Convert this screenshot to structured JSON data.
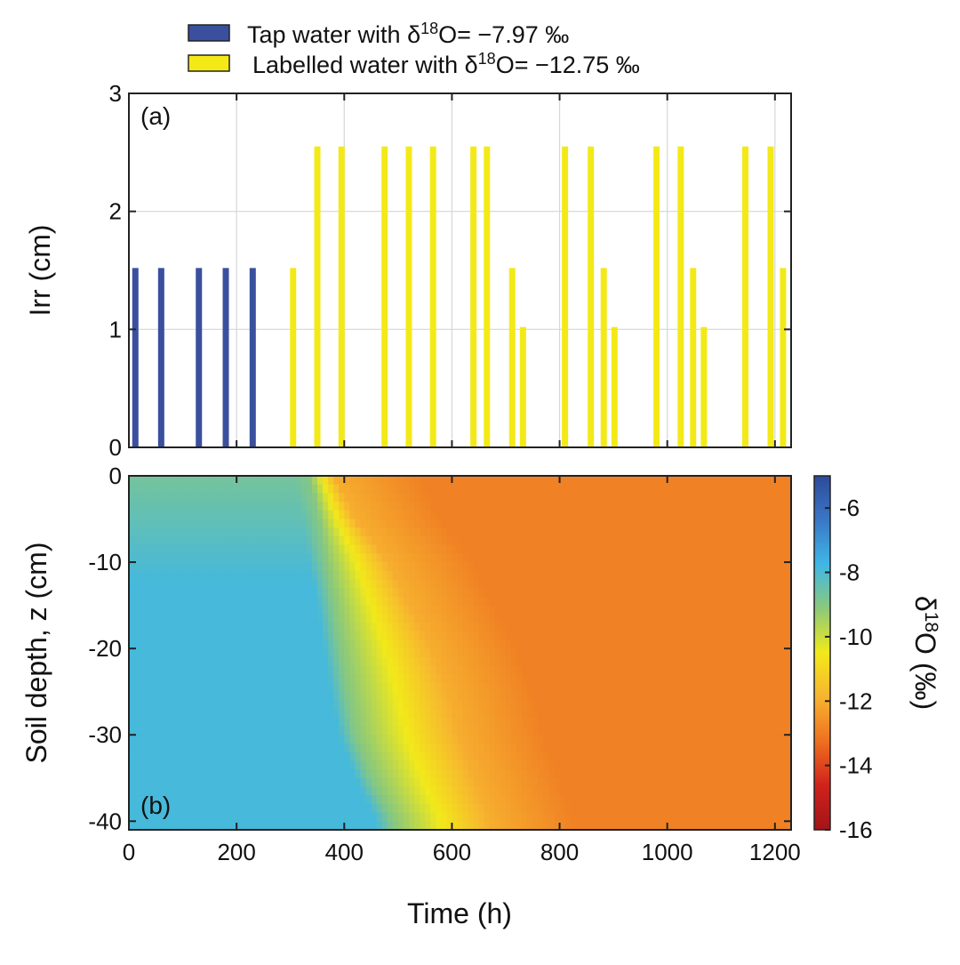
{
  "colors": {
    "tap": "#3a4f9e",
    "labelled": "#f3e917",
    "colormap": [
      "#2d4a9a",
      "#3a77c6",
      "#3fb7e6",
      "#8cc97a",
      "#f2e91a",
      "#f7b430",
      "#ee7020",
      "#d0221b",
      "#a3141a"
    ]
  },
  "chart_data": [
    {
      "type": "bar",
      "panel_label": "(a)",
      "ylabel": "Irr (cm)",
      "xlim": [
        0,
        1230
      ],
      "ylim": [
        0,
        3
      ],
      "yticks": [
        "0",
        "1",
        "2",
        "3"
      ],
      "grid": true,
      "legend": [
        {
          "label": "Tap water with δ18O= −7.97 ‰",
          "text_before": "Tap water with δ",
          "sup": "18",
          "text_after": "O= −7.97 ‰",
          "color_key": "tap"
        },
        {
          "label": "Labelled water with δ18O= −12.75 ‰",
          "text_before": "Labelled water with δ",
          "sup": "18",
          "text_after": "O= −12.75 ‰",
          "color_key": "labelled"
        }
      ],
      "series": [
        {
          "name": "Tap water with δ18O= −7.97 ‰",
          "color_key": "tap",
          "x": [
            12,
            60,
            130,
            180,
            230
          ],
          "values": [
            1.52,
            1.52,
            1.52,
            1.52,
            1.52
          ]
        },
        {
          "name": "Labelled water with δ18O= −12.75 ‰",
          "color_key": "labelled",
          "x": [
            305,
            350,
            395,
            475,
            520,
            565,
            640,
            665,
            712,
            732,
            810,
            858,
            882,
            902,
            980,
            1025,
            1048,
            1068,
            1145,
            1192,
            1215
          ],
          "values": [
            1.52,
            2.55,
            2.55,
            2.55,
            2.55,
            2.55,
            2.55,
            2.55,
            1.52,
            1.02,
            2.55,
            2.55,
            1.52,
            1.02,
            2.55,
            2.55,
            1.52,
            1.02,
            2.55,
            2.55,
            1.52
          ]
        }
      ]
    },
    {
      "type": "heatmap",
      "panel_label": "(b)",
      "xlabel": "Time (h)",
      "ylabel": "Soil depth, z (cm)",
      "xlim": [
        0,
        1230
      ],
      "ylim": [
        -41,
        0
      ],
      "xticks": [
        "0",
        "200",
        "400",
        "600",
        "800",
        "1000",
        "1200"
      ],
      "yticks": [
        "0",
        "-10",
        "-20",
        "-30",
        "-40"
      ],
      "colorbar": {
        "label_before": "δ",
        "label_sup": "18",
        "label_after": "O (‰)",
        "range": [
          -16,
          -5
        ],
        "ticks": [
          "-6",
          "-8",
          "-10",
          "-12",
          "-14",
          "-16"
        ]
      },
      "front_depth_cm": [
        0,
        -5,
        -10,
        -15,
        -20,
        -25,
        -30,
        -35,
        -40
      ],
      "front_time_h": [
        335,
        352,
        365,
        380,
        392,
        405,
        420,
        450,
        490
      ],
      "plateau_time_h": [
        380,
        420,
        480,
        520,
        560,
        590,
        610,
        640,
        670
      ],
      "early_d18O": -7.9,
      "surface_early_d18O": -8.7,
      "late_d18O": -12.9
    }
  ]
}
